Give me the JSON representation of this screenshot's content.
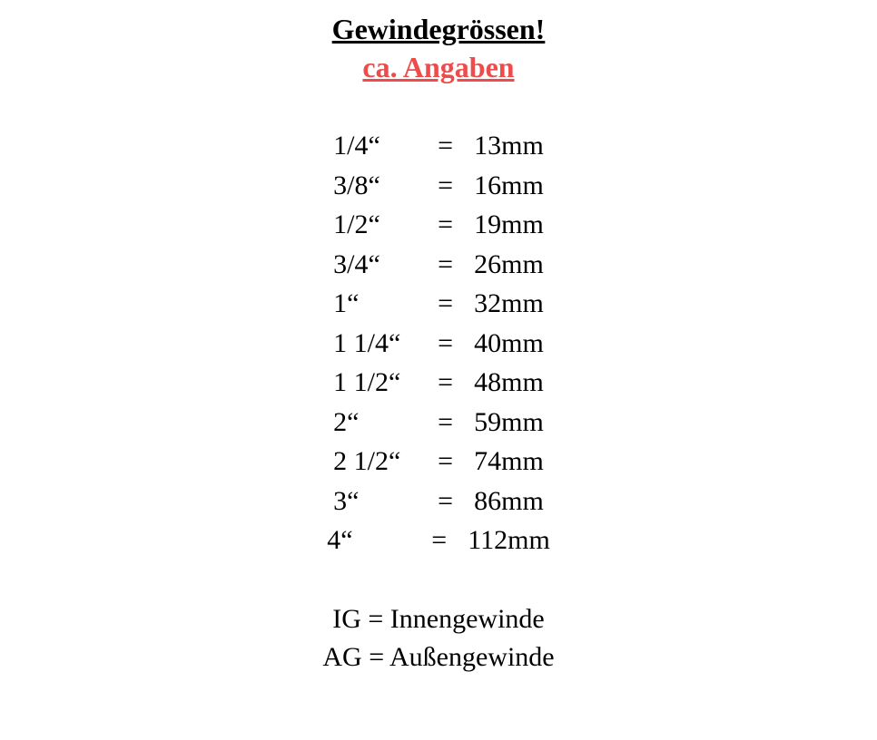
{
  "header": {
    "title": "Gewindegrössen!",
    "subtitle": "ca. Angaben"
  },
  "sizes": {
    "rows": [
      {
        "size": "1/4“",
        "mm": "13mm"
      },
      {
        "size": "3/8“",
        "mm": "16mm"
      },
      {
        "size": "1/2“",
        "mm": "19mm"
      },
      {
        "size": "3/4“",
        "mm": "26mm"
      },
      {
        "size": "1“",
        "mm": "32mm"
      },
      {
        "size": "1 1/4“",
        "mm": "40mm"
      },
      {
        "size": "1 1/2“",
        "mm": "48mm"
      },
      {
        "size": "2“",
        "mm": "59mm"
      },
      {
        "size": "2 1/2“",
        "mm": "74mm"
      },
      {
        "size": "3“",
        "mm": "86mm"
      },
      {
        "size": "4“",
        "mm": "112mm"
      }
    ],
    "equals": "="
  },
  "legend": {
    "rows": [
      "IG = Innengewinde",
      "AG = Außengewinde"
    ]
  },
  "style": {
    "background_color": "#ffffff",
    "title_color": "#000000",
    "subtitle_color": "#ee4b4b",
    "text_color": "#000000",
    "title_fontsize": 32,
    "body_fontsize": 30,
    "font_family": "Georgia, 'Times New Roman', serif"
  }
}
